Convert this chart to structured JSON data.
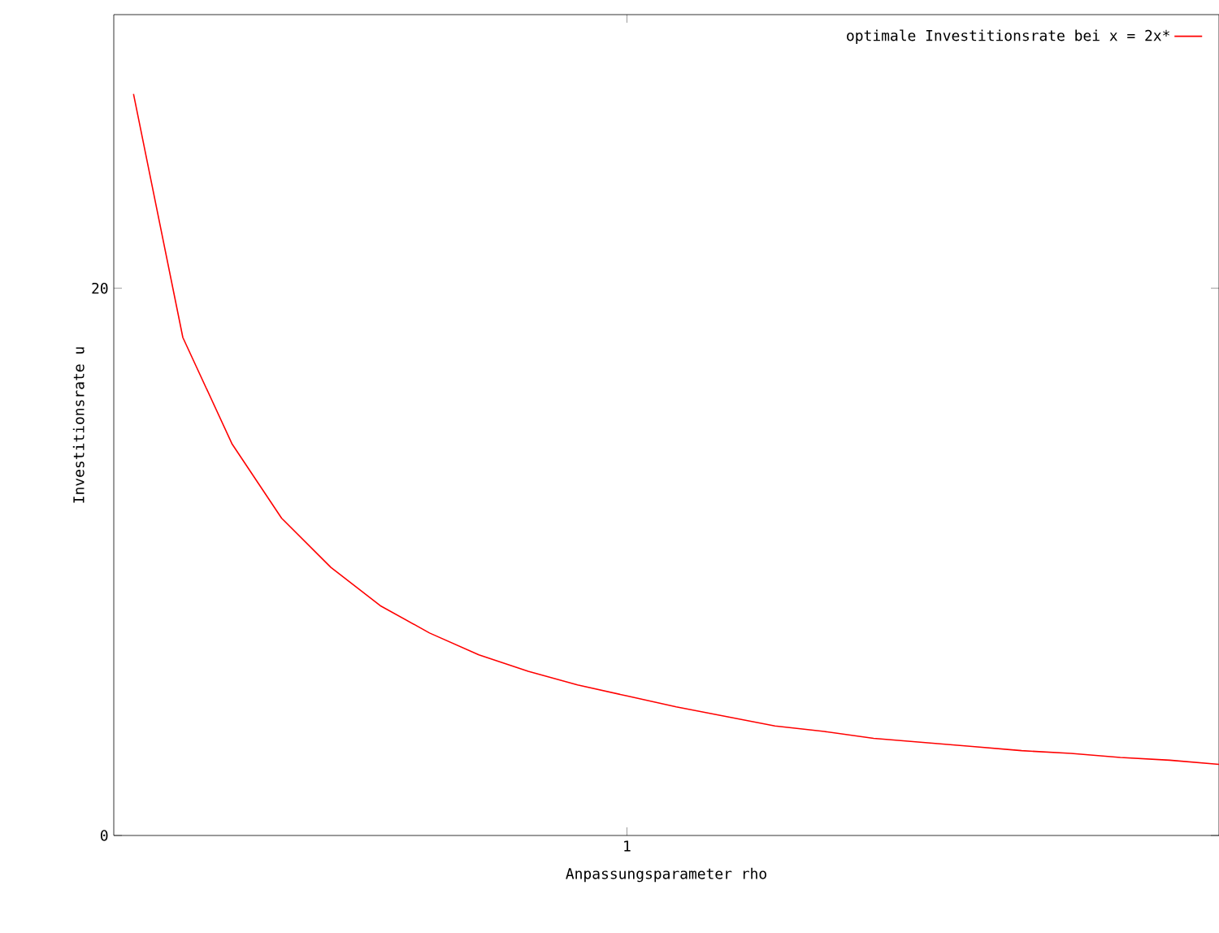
{
  "chart_data": {
    "type": "line",
    "xlabel": "Anpassungsparameter rho",
    "ylabel": "Investitionsrate u",
    "categories": [
      null,
      null,
      null,
      null,
      null,
      null,
      null,
      null,
      null,
      null,
      "1",
      null,
      null,
      null,
      null,
      null,
      null,
      null,
      null,
      null,
      null,
      null,
      null
    ],
    "ylim": [
      0,
      30
    ],
    "yticks": [
      {
        "value": 0,
        "label": "0"
      },
      {
        "value": 20,
        "label": "20"
      }
    ],
    "legend": "top right",
    "grid": false,
    "marker": "none",
    "line_style": "solid",
    "series": [
      {
        "name": "optimale Investitionsrate bei x = 2x*",
        "color": "#ff0000",
        "values": [
          27.1,
          18.2,
          14.3,
          11.6,
          9.8,
          8.4,
          7.4,
          6.6,
          6.0,
          5.5,
          5.1,
          4.7,
          4.35,
          4.0,
          3.8,
          3.55,
          3.4,
          3.25,
          3.1,
          3.0,
          2.85,
          2.75,
          2.6
        ]
      }
    ]
  }
}
